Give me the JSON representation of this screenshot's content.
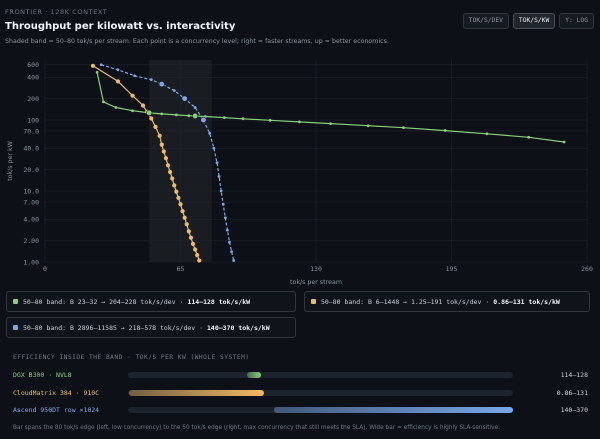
{
  "header": {
    "kicker": "FRONTIER · 128K CONTEXT",
    "title": "Throughput per kilowatt vs. interactivity",
    "subtitle": "Shaded band = 50–80 tok/s per stream. Each point is a concurrency level; right = faster streams, up = better economics."
  },
  "toggles": [
    {
      "label": "TOK/S/DEV",
      "active": false
    },
    {
      "label": "TOK/S/KW",
      "active": true
    },
    {
      "label": "Y: LOG",
      "active": false
    }
  ],
  "chart_data": {
    "type": "line",
    "xlabel": "tok/s per stream",
    "ylabel": "tok/s per kW",
    "x_range": [
      0,
      260
    ],
    "y_range": [
      1,
      700
    ],
    "y_scale": "log",
    "x_ticks": [
      "0",
      "65",
      "130",
      "195",
      "260"
    ],
    "y_ticks": [
      "1.00",
      "2.00",
      "4.00",
      "7.00",
      "10.0",
      "20.0",
      "40.0",
      "70.0",
      "100",
      "200",
      "400",
      "600"
    ],
    "band": [
      50,
      80
    ],
    "series": [
      {
        "name": "DGX B300 · NVL8",
        "color": "#86d17a",
        "x": [
          25,
          28,
          34,
          42,
          50,
          56,
          63,
          69,
          77,
          86,
          95,
          108,
          122,
          137,
          155,
          172,
          192,
          212,
          232,
          249
        ],
        "y": [
          470,
          180,
          150,
          135,
          126,
          122,
          118,
          115,
          112,
          108,
          104,
          99,
          94,
          89,
          83,
          78,
          71,
          64,
          57,
          49
        ]
      },
      {
        "name": "CloudMatrix 384 · 910C",
        "color": "#f0b964",
        "x": [
          23,
          35,
          42,
          47,
          49,
          51,
          53,
          55,
          56,
          57,
          58,
          59,
          60,
          61,
          62,
          63,
          64,
          65,
          66,
          67,
          68,
          69,
          70,
          71,
          72,
          73,
          74
        ],
        "y": [
          580,
          350,
          220,
          160,
          130,
          105,
          80,
          60,
          45,
          36,
          29,
          23,
          18.5,
          15,
          12,
          9.8,
          8,
          6.5,
          5.2,
          4.2,
          3.4,
          2.7,
          2.2,
          1.8,
          1.5,
          1.25,
          1.05
        ]
      },
      {
        "name": "Ascend 950DT row ×1024",
        "color": "#79a8e8",
        "x": [
          27,
          35,
          43,
          51,
          56,
          62,
          67,
          72,
          76,
          79,
          81,
          82.5,
          83.5,
          84.5,
          85.5,
          86.5,
          87.5,
          88.5,
          89.5,
          90.5
        ],
        "y": [
          600,
          510,
          420,
          370,
          320,
          260,
          200,
          150,
          100,
          65,
          40,
          25,
          16,
          10,
          6.5,
          4.2,
          2.8,
          1.9,
          1.4,
          1.05
        ]
      }
    ],
    "highlight_points": [
      {
        "series": 0,
        "x": 50,
        "y": 126
      },
      {
        "series": 0,
        "x": 72,
        "y": 114
      },
      {
        "series": 2,
        "x": 56,
        "y": 320
      },
      {
        "series": 2,
        "x": 67,
        "y": 200
      },
      {
        "series": 2,
        "x": 76,
        "y": 100
      }
    ]
  },
  "cards": [
    {
      "color": "#86d17a",
      "text": "50–80 band: B 23–32 → 204–228 tok/s/dev ·",
      "metric": "114–128 tok/s/kW"
    },
    {
      "color": "#f0b964",
      "text": "50–80 band: B 6–1448 → 1.25–191 tok/s/dev ·",
      "metric": "0.86–131 tok/s/kW"
    },
    {
      "color": "#79a8e8",
      "text": "50–80 band: B 2896–11585 → 218–578 tok/s/dev ·",
      "metric": "140–370 tok/s/kW"
    }
  ],
  "efficiency": {
    "title": "EFFICIENCY INSIDE THE BAND · TOK/S PER KW (WHOLE SYSTEM)",
    "rows": [
      {
        "label": "DGX B300 · NVL8",
        "color": "#86d17a",
        "value": "114–128",
        "min": 114,
        "max": 128
      },
      {
        "label": "CloudMatrix 384 · 910C",
        "color": "#f0b964",
        "value": "0.86–131",
        "min": 0.86,
        "max": 131
      },
      {
        "label": "Ascend 950DT row ×1024",
        "color": "#79a8e8",
        "value": "140–370",
        "min": 140,
        "max": 370
      }
    ],
    "scale_max": 370,
    "footnote": "Bar spans the 80 tok/s edge (left, low concurrency) to the 50 tok/s edge (right, max concurrency that still meets the SLA). Wide bar = efficiency is highly SLA-sensitive."
  }
}
